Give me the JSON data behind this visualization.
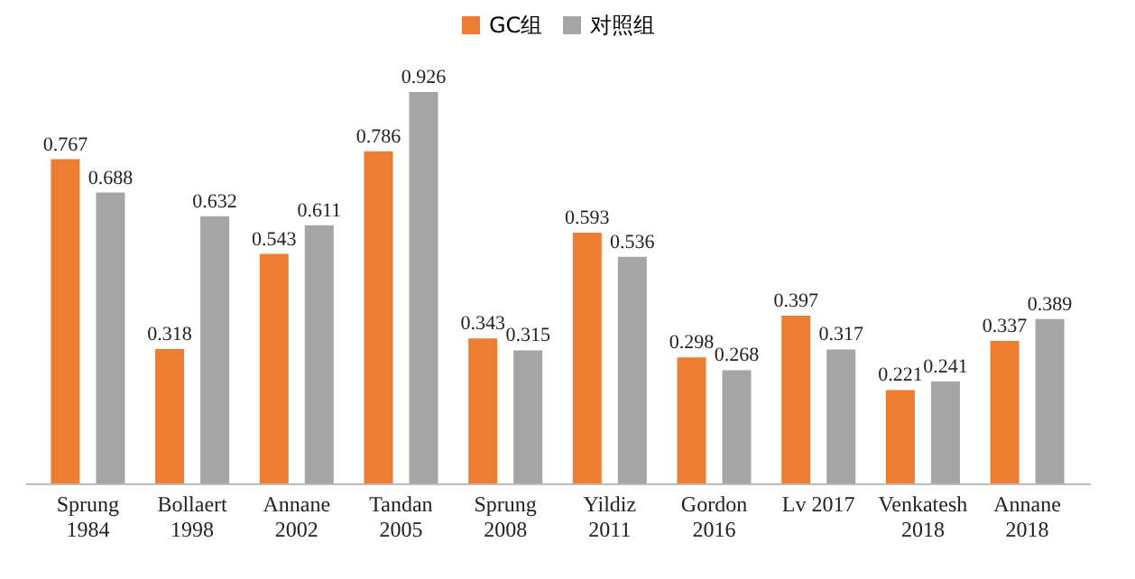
{
  "chart_data": {
    "type": "bar",
    "categories": [
      "Sprung 1984",
      "Bollaert 1998",
      "Annane 2002",
      "Tandan 2005",
      "Sprung 2008",
      "Yildiz 2011",
      "Gordon 2016",
      "Lv 2017",
      "Venkatesh 2018",
      "Annane 2018"
    ],
    "series": [
      {
        "name": "GC组",
        "color": "#ed7d31",
        "values": [
          0.767,
          0.318,
          0.543,
          0.786,
          0.343,
          0.593,
          0.298,
          0.397,
          0.221,
          0.337
        ]
      },
      {
        "name": "对照组",
        "color": "#a5a5a5",
        "values": [
          0.688,
          0.632,
          0.611,
          0.926,
          0.315,
          0.536,
          0.268,
          0.317,
          0.241,
          0.389
        ]
      }
    ],
    "data_labels": true,
    "legend": "top"
  }
}
